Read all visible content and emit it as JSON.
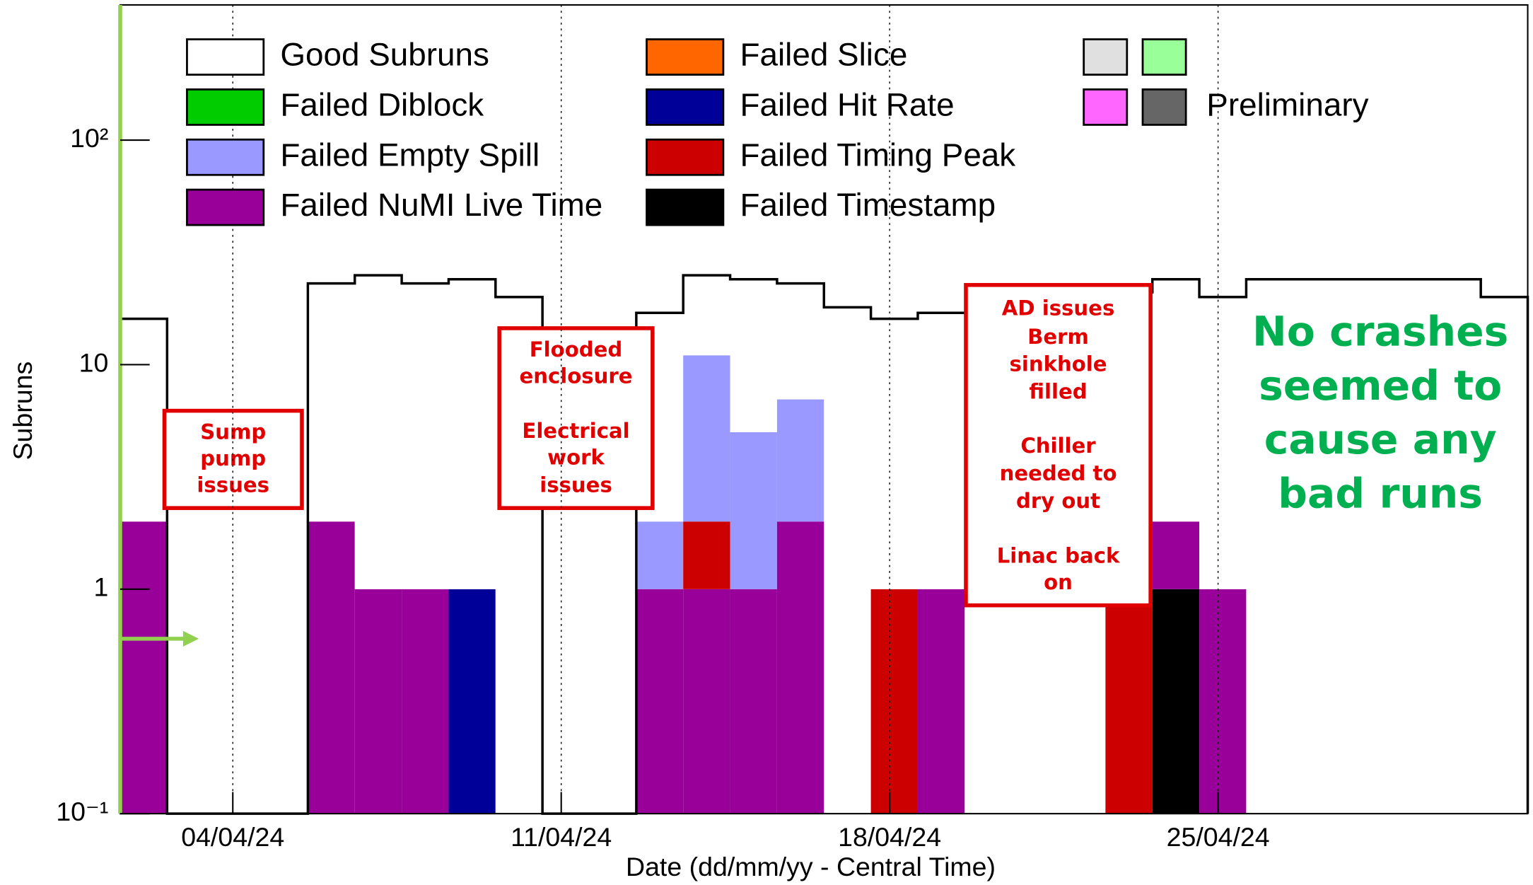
{
  "chart_data": {
    "type": "histogram",
    "y_label": "Subruns",
    "x_label": "Date (dd/mm/yy - Central Time)",
    "log_y": true,
    "ylim": [
      0.1,
      400
    ],
    "yticks": [
      {
        "value": 0.1,
        "label": "10⁻¹"
      },
      1,
      10,
      {
        "value": 100,
        "label": "10²"
      }
    ],
    "xlim": [
      1.6,
      31.6
    ],
    "xticks": [
      {
        "value": 4,
        "label": "04/04/24"
      },
      {
        "value": 11,
        "label": "11/04/24"
      },
      {
        "value": 18,
        "label": "18/04/24"
      },
      {
        "value": 25,
        "label": "25/04/24"
      }
    ],
    "bins": [
      1.6,
      2.6,
      3.6,
      4.6,
      5.6,
      6.6,
      7.6,
      8.6,
      9.6,
      10.6,
      11.6,
      12.6,
      13.6,
      14.6,
      15.6,
      16.6,
      17.6,
      18.6,
      19.6,
      20.6,
      21.6,
      22.6,
      23.6,
      24.6,
      25.6,
      26.6,
      27.6,
      28.6,
      29.6,
      30.6,
      31.6
    ],
    "series": [
      {
        "name": "Good Subruns",
        "color": "#ffffff",
        "values": [
          14,
          0,
          0,
          0,
          21,
          24,
          22,
          23,
          20,
          0,
          0,
          15,
          14,
          19,
          16,
          18,
          15,
          16,
          17,
          18,
          20,
          20,
          22,
          19,
          24,
          24,
          24,
          24,
          24,
          20
        ]
      },
      {
        "name": "Failed Diblock",
        "color": "#00cc00",
        "values": [
          0,
          0,
          0,
          0,
          0,
          0,
          0,
          0,
          0,
          0,
          0,
          0,
          0,
          0,
          0,
          0,
          0,
          0,
          0,
          0,
          0,
          0,
          0,
          0,
          0,
          0,
          0,
          0,
          0,
          0
        ]
      },
      {
        "name": "Failed Empty Spill",
        "color": "#9999ff",
        "values": [
          0,
          0,
          0,
          0,
          0,
          0,
          0,
          0,
          0,
          0,
          0,
          1,
          9,
          4,
          5,
          0,
          0,
          0,
          0,
          0,
          0,
          0,
          0,
          0,
          0,
          0,
          0,
          0,
          0,
          0
        ]
      },
      {
        "name": "Failed NuMI Live Time",
        "color": "#990099",
        "values": [
          2,
          0,
          0,
          0,
          2,
          1,
          1,
          0,
          0,
          0,
          0,
          1,
          1,
          1,
          2,
          0,
          0,
          1,
          0,
          0,
          0,
          0,
          1,
          1,
          0,
          0,
          0,
          0,
          0,
          0
        ]
      },
      {
        "name": "Failed Slice",
        "color": "#ff6600",
        "values": [
          0,
          0,
          0,
          0,
          0,
          0,
          0,
          0,
          0,
          0,
          0,
          0,
          0,
          0,
          0,
          0,
          0,
          0,
          0,
          0,
          0,
          0,
          0,
          0,
          0,
          0,
          0,
          0,
          0,
          0
        ]
      },
      {
        "name": "Failed Hit Rate",
        "color": "#000099",
        "values": [
          0,
          0,
          0,
          0,
          0,
          0,
          0,
          1,
          0,
          0,
          0,
          0,
          0,
          0,
          0,
          0,
          0,
          0,
          0,
          0,
          0,
          0,
          0,
          0,
          0,
          0,
          0,
          0,
          0,
          0
        ]
      },
      {
        "name": "Failed Timing Peak",
        "color": "#cc0000",
        "values": [
          0,
          0,
          0,
          0,
          0,
          0,
          0,
          0,
          0,
          0,
          0,
          0,
          1,
          0,
          0,
          0,
          1,
          0,
          0,
          0,
          0,
          1,
          0,
          0,
          0,
          0,
          0,
          0,
          0,
          0
        ]
      },
      {
        "name": "Failed Timestamp",
        "color": "#000000",
        "values": [
          0,
          0,
          0,
          0,
          0,
          0,
          0,
          0,
          0,
          0,
          0,
          0,
          0,
          0,
          0,
          0,
          0,
          0,
          0,
          0,
          0,
          0,
          1,
          0,
          0,
          0,
          0,
          0,
          0,
          0
        ]
      }
    ],
    "legend_extra": [
      {
        "name": null,
        "color": "#e0e0e0"
      },
      {
        "name": null,
        "color": "#99ff99"
      },
      {
        "name": null,
        "color": "#ff66ff"
      },
      {
        "name": "Preliminary",
        "color": "#666666"
      }
    ],
    "annotations": [
      {
        "lines": [
          "Sump",
          "pump",
          "issues"
        ]
      },
      {
        "lines": [
          "Flooded",
          "enclosure",
          "Electrical",
          "work",
          "issues"
        ]
      },
      {
        "lines": [
          "AD issues",
          "Berm",
          "sinkhole",
          "filled",
          "Chiller",
          "needed to",
          "dry out",
          "Linac back",
          "on"
        ]
      },
      {
        "lines": [
          "No crashes",
          "seemed to",
          "cause any",
          "bad runs"
        ]
      }
    ]
  }
}
